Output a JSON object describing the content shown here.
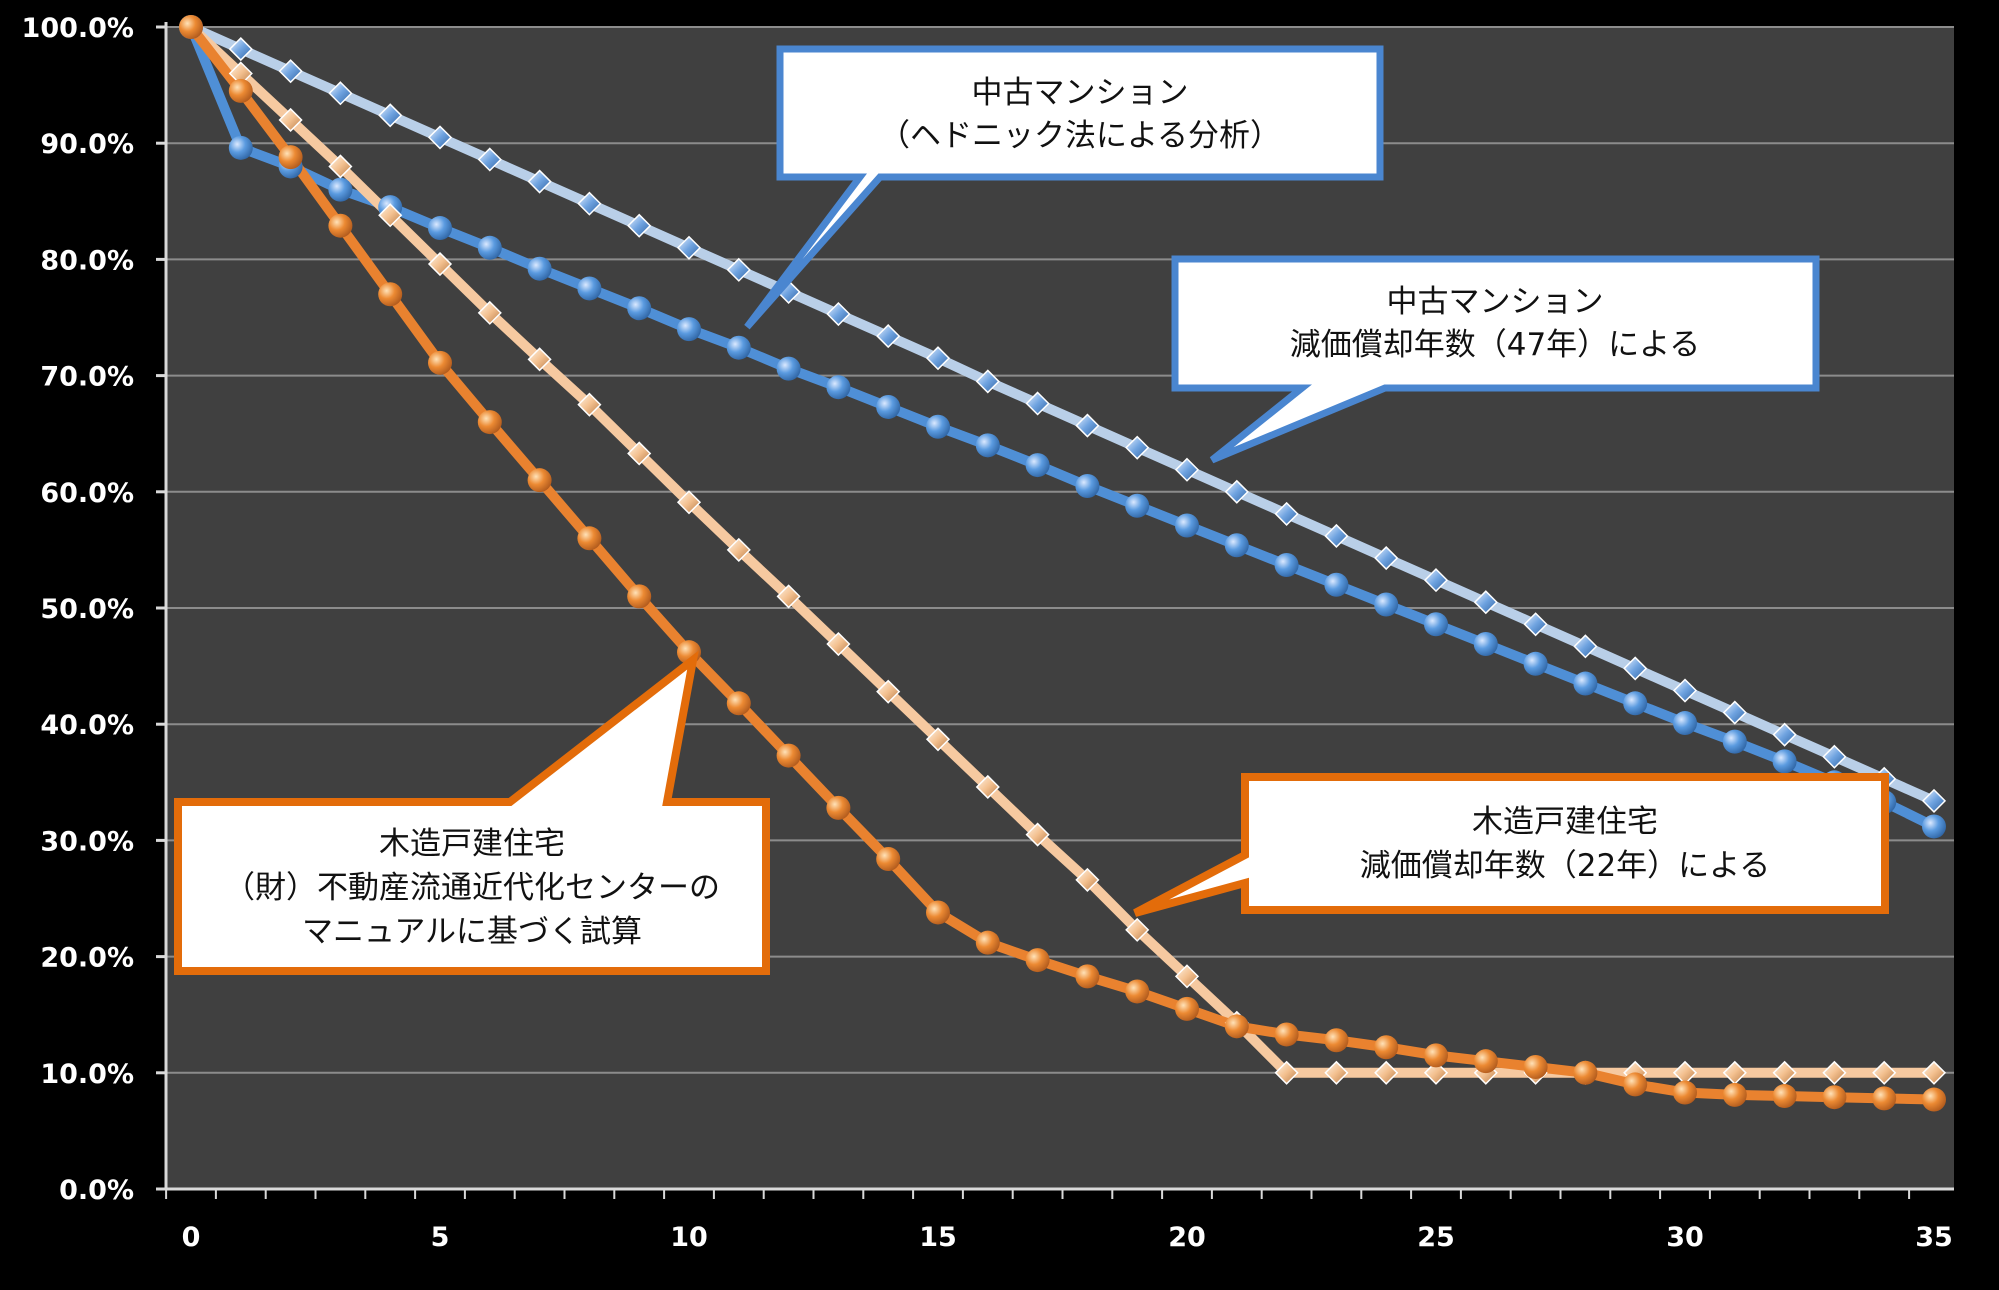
{
  "colors": {
    "figure_bg": "#000000",
    "plot_bg": "#404040",
    "grid": "#8c8c8c",
    "axis": "#d9d9d9",
    "mansion_hedonic": "#4f8fd6",
    "mansion_depreciation": "#b9cfe8",
    "wood_center": "#e9822f",
    "wood_depreciation": "#f6c9a0",
    "callout_blue_border": "#4a86d0",
    "callout_orange_border": "#e36c0a"
  },
  "callouts": {
    "mansion_hedonic": {
      "line1": "中古マンション",
      "line2": "（ヘドニック法による分析）"
    },
    "mansion_depreciation": {
      "line1": "中古マンション",
      "line2": "減価償却年数（47年）による"
    },
    "wood_depreciation": {
      "line1": "木造戸建住宅",
      "line2": "減価償却年数（22年）による"
    },
    "wood_center": {
      "line1": "木造戸建住宅",
      "line2": "（財）不動産流通近代化センターの",
      "line3": "マニュアルに基づく試算"
    }
  },
  "chart_data": {
    "type": "line",
    "title": "",
    "xlabel": "",
    "ylabel": "",
    "xlim": [
      0,
      35
    ],
    "ylim": [
      0,
      100
    ],
    "x_ticks": [
      "0",
      "5",
      "10",
      "15",
      "20",
      "25",
      "30",
      "35"
    ],
    "y_ticks": [
      "0.0%",
      "10.0%",
      "20.0%",
      "30.0%",
      "40.0%",
      "50.0%",
      "60.0%",
      "70.0%",
      "80.0%",
      "90.0%",
      "100.0%"
    ],
    "grid": true,
    "legend": "none",
    "x": [
      0,
      1,
      2,
      3,
      4,
      5,
      6,
      7,
      8,
      9,
      10,
      11,
      12,
      13,
      14,
      15,
      16,
      17,
      18,
      19,
      20,
      21,
      22,
      23,
      24,
      25,
      26,
      27,
      28,
      29,
      30,
      31,
      32,
      33,
      34,
      35
    ],
    "series": [
      {
        "key": "mansion_depreciation",
        "marker": "diamond",
        "values": [
          100,
          98.1,
          96.2,
          94.3,
          92.4,
          90.5,
          88.6,
          86.7,
          84.8,
          82.9,
          81.0,
          79.1,
          77.2,
          75.3,
          73.4,
          71.5,
          69.5,
          67.6,
          65.7,
          63.8,
          61.9,
          60.0,
          58.1,
          56.2,
          54.3,
          52.4,
          50.5,
          48.6,
          46.7,
          44.8,
          42.9,
          41.0,
          39.1,
          37.2,
          35.3,
          33.4
        ]
      },
      {
        "key": "mansion_hedonic",
        "marker": "circle",
        "values": [
          100,
          89.6,
          88.0,
          86.0,
          84.5,
          82.7,
          81.0,
          79.2,
          77.5,
          75.8,
          74.0,
          72.4,
          70.6,
          69.0,
          67.3,
          65.6,
          64.0,
          62.3,
          60.5,
          58.8,
          57.1,
          55.4,
          53.7,
          52.0,
          50.3,
          48.6,
          46.9,
          45.2,
          43.5,
          41.8,
          40.1,
          38.5,
          36.8,
          35.0,
          33.3,
          31.2
        ]
      },
      {
        "key": "wood_depreciation",
        "marker": "diamond",
        "values": [
          100,
          96.0,
          92.0,
          88.0,
          83.8,
          79.6,
          75.4,
          71.4,
          67.5,
          63.3,
          59.1,
          55.0,
          51.0,
          46.9,
          42.8,
          38.7,
          34.6,
          30.5,
          26.6,
          22.3,
          18.3,
          14.3,
          10.0,
          10.0,
          10.0,
          10.0,
          10.0,
          10.0,
          10.0,
          10.0,
          10.0,
          10.0,
          10.0,
          10.0,
          10.0,
          10.0
        ]
      },
      {
        "key": "wood_center",
        "marker": "circle",
        "values": [
          100,
          94.5,
          88.8,
          82.9,
          77.0,
          71.1,
          66.0,
          61.0,
          56.0,
          51.0,
          46.2,
          41.8,
          37.3,
          32.8,
          28.4,
          23.8,
          21.2,
          19.7,
          18.3,
          17.0,
          15.5,
          14.0,
          13.3,
          12.8,
          12.2,
          11.5,
          11.0,
          10.5,
          10.0,
          9.0,
          8.3,
          8.1,
          8.0,
          7.9,
          7.8,
          7.7
        ]
      }
    ]
  }
}
